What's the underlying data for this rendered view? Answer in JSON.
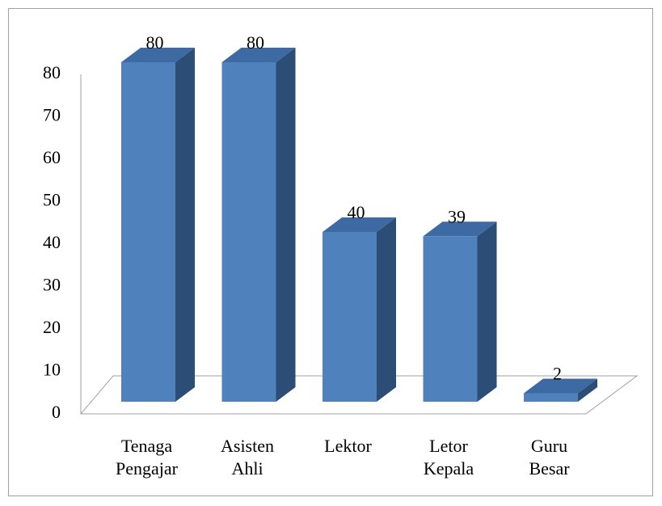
{
  "chart_data": {
    "type": "bar3d",
    "categories": [
      "Tenaga Pengajar",
      "Asisten Ahli",
      "Lektor",
      "Letor Kepala",
      "Guru Besar"
    ],
    "values": [
      80,
      80,
      40,
      39,
      2
    ],
    "color": "#4f81bd",
    "ylim": [
      0,
      80
    ],
    "yticks": [
      0,
      10,
      20,
      30,
      40,
      50,
      60,
      70,
      80
    ]
  }
}
